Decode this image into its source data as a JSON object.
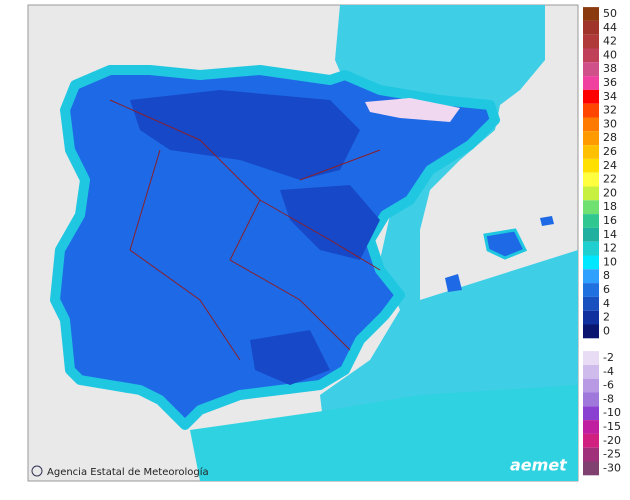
{
  "credit": "Agencia Estatal de Meteorología",
  "logo": "aemet",
  "legend": {
    "positive": {
      "values": [
        50,
        44,
        42,
        40,
        38,
        36,
        34,
        32,
        30,
        28,
        26,
        24,
        22,
        20,
        18,
        16,
        14,
        12,
        10,
        8,
        6,
        4,
        2,
        0
      ],
      "colors": [
        "#8b3a0f",
        "#a0342a",
        "#b03a3a",
        "#c0405a",
        "#d0508a",
        "#f040a0",
        "#ff0000",
        "#ff4500",
        "#ff7a00",
        "#ff9a00",
        "#ffc000",
        "#ffe000",
        "#ffff40",
        "#c8f040",
        "#70e070",
        "#30c890",
        "#20b0a0",
        "#20d0d0",
        "#00e8ff",
        "#30a0ff",
        "#2070e0",
        "#1850c0",
        "#1030a0",
        "#0a1570"
      ]
    },
    "negative": {
      "values": [
        -2,
        -4,
        -6,
        -8,
        -10,
        -15,
        -20,
        -25,
        -30
      ],
      "colors": [
        "#e8dcf4",
        "#d0bcec",
        "#b89ae4",
        "#a078dc",
        "#8a40d0",
        "#c020a0",
        "#d02080",
        "#a0307a",
        "#804070"
      ]
    }
  }
}
